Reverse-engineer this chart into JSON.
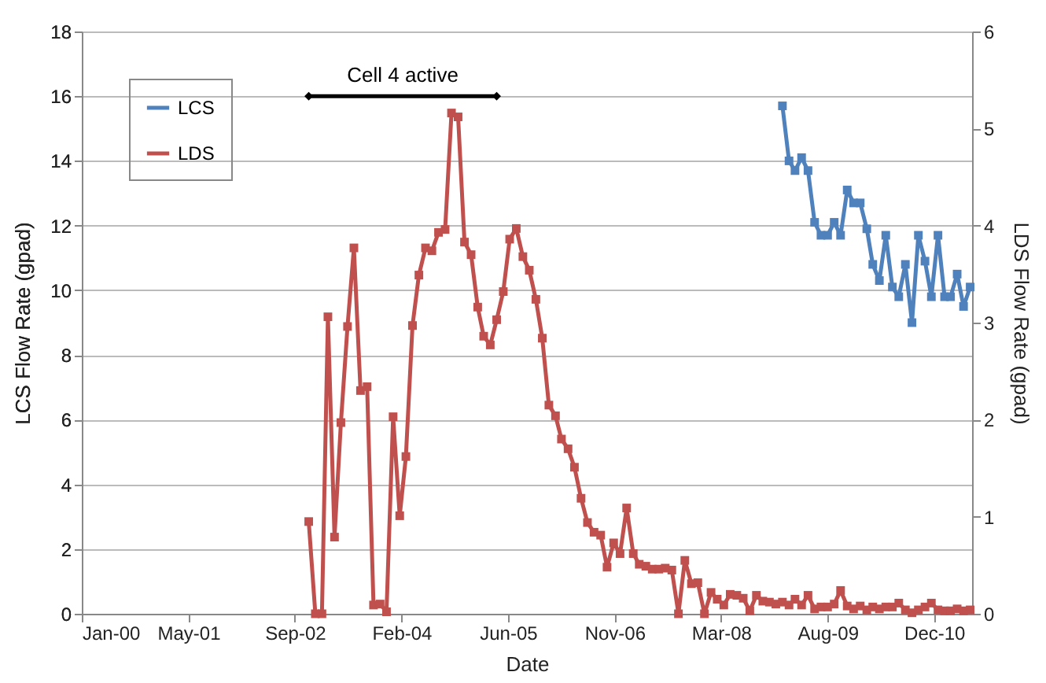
{
  "chart_data": {
    "type": "line",
    "xlabel": "Date",
    "ylabel": "LCS Flow Rate (gpad)",
    "y2label": "LDS Flow Rate (gpad)",
    "xlim": [
      "2000-01-01",
      "2011-06-10"
    ],
    "xticks": [
      {
        "value": "2000-01-01",
        "label": "Jan-00"
      },
      {
        "value": "2001-05-15",
        "label": "May-01"
      },
      {
        "value": "2002-09-27",
        "label": "Sep-02"
      },
      {
        "value": "2004-02-09",
        "label": "Feb-04"
      },
      {
        "value": "2005-06-23",
        "label": "Jun-05"
      },
      {
        "value": "2006-11-05",
        "label": "Nov-06"
      },
      {
        "value": "2008-03-19",
        "label": "Mar-08"
      },
      {
        "value": "2009-08-01",
        "label": "Aug-09"
      },
      {
        "value": "2010-12-14",
        "label": "Dec-10"
      }
    ],
    "ylim": [
      0,
      18
    ],
    "yticks": [
      0,
      2,
      4,
      6,
      8,
      10,
      12,
      14,
      16,
      18
    ],
    "y2lim": [
      0,
      6
    ],
    "y2ticks": [
      0,
      1,
      2,
      3,
      4,
      5,
      6
    ],
    "grid": "y",
    "legend": "top left",
    "marker": "square",
    "line_style": "solid",
    "annotations": [
      {
        "text": "Cell 4 active",
        "x": "2004-02-15",
        "y": 16
      }
    ],
    "series": [
      {
        "color": "#000000",
        "marker": "diamond",
        "x": [
          "2002-12",
          "2005-05"
        ],
        "values": [
          16,
          16
        ]
      },
      {
        "name": "LCS",
        "color": "#4f81bd",
        "x": [
          "2009-01",
          "2009-02",
          "2009-03",
          "2009-04",
          "2009-05",
          "2009-06",
          "2009-07",
          "2009-08",
          "2009-09",
          "2009-10",
          "2009-11",
          "2009-12",
          "2010-01",
          "2010-02",
          "2010-03",
          "2010-04",
          "2010-05",
          "2010-06",
          "2010-07",
          "2010-08",
          "2010-09",
          "2010-10",
          "2010-11",
          "2010-12",
          "2011-01",
          "2011-02",
          "2011-03",
          "2011-04",
          "2011-05",
          "2011-06"
        ],
        "values": [
          15.7,
          14.0,
          13.7,
          14.1,
          13.7,
          12.1,
          11.7,
          11.7,
          12.1,
          11.7,
          13.1,
          12.7,
          12.7,
          11.9,
          10.8,
          10.3,
          11.7,
          10.1,
          9.8,
          10.8,
          9.0,
          11.7,
          10.9,
          9.8,
          11.7,
          9.8,
          9.8,
          10.5,
          9.5,
          10.1
        ]
      },
      {
        "name": "LDS",
        "color": "#c0504d",
        "axis": "y2",
        "x": [
          "2002-12",
          "2003-01",
          "2003-02",
          "2003-03",
          "2003-04",
          "2003-05",
          "2003-06",
          "2003-07",
          "2003-08",
          "2003-09",
          "2003-10",
          "2003-11",
          "2003-12",
          "2004-01",
          "2004-02",
          "2004-03",
          "2004-04",
          "2004-05",
          "2004-06",
          "2004-07",
          "2004-08",
          "2004-09",
          "2004-10",
          "2004-11",
          "2004-12",
          "2005-01",
          "2005-02",
          "2005-03",
          "2005-04",
          "2005-05",
          "2005-06",
          "2005-07",
          "2005-08",
          "2005-09",
          "2005-10",
          "2005-11",
          "2005-12",
          "2006-01",
          "2006-02",
          "2006-03",
          "2006-04",
          "2006-05",
          "2006-06",
          "2006-07",
          "2006-08",
          "2006-09",
          "2006-10",
          "2006-11",
          "2006-12",
          "2007-01",
          "2007-02",
          "2007-03",
          "2007-04",
          "2007-05",
          "2007-06",
          "2007-07",
          "2007-08",
          "2007-09",
          "2007-10",
          "2007-11",
          "2007-12",
          "2008-01",
          "2008-02",
          "2008-03",
          "2008-04",
          "2008-05",
          "2008-06",
          "2008-07",
          "2008-08",
          "2008-09",
          "2008-10",
          "2008-11",
          "2008-12",
          "2009-01",
          "2009-02",
          "2009-03",
          "2009-04",
          "2009-05",
          "2009-06",
          "2009-07",
          "2009-08",
          "2009-09",
          "2009-10",
          "2009-11",
          "2009-12",
          "2010-01",
          "2010-02",
          "2010-03",
          "2010-04",
          "2010-05",
          "2010-06",
          "2010-07",
          "2010-08",
          "2010-09",
          "2010-10",
          "2010-11",
          "2010-12",
          "2011-01",
          "2011-02",
          "2011-03",
          "2011-04",
          "2011-05",
          "2011-06"
        ],
        "values": [
          0.95,
          0,
          0,
          3.06,
          0.79,
          1.97,
          2.96,
          3.77,
          2.3,
          2.34,
          0.09,
          0.1,
          0.02,
          2.03,
          1.01,
          1.62,
          2.97,
          3.49,
          3.77,
          3.74,
          3.93,
          3.96,
          5.16,
          5.12,
          3.83,
          3.7,
          3.16,
          2.86,
          2.77,
          3.03,
          3.32,
          3.86,
          3.97,
          3.68,
          3.54,
          3.24,
          2.84,
          2.15,
          2.04,
          1.8,
          1.7,
          1.51,
          1.19,
          0.94,
          0.84,
          0.81,
          0.48,
          0.73,
          0.62,
          1.09,
          0.62,
          0.51,
          0.49,
          0.46,
          0.46,
          0.47,
          0.45,
          0,
          0.55,
          0.31,
          0.32,
          0,
          0.22,
          0.15,
          0.09,
          0.2,
          0.19,
          0.16,
          0.03,
          0.19,
          0.13,
          0.12,
          0.1,
          0.12,
          0.09,
          0.15,
          0.09,
          0.19,
          0.05,
          0.07,
          0.07,
          0.1,
          0.24,
          0.08,
          0.05,
          0.08,
          0.04,
          0.07,
          0.05,
          0.07,
          0.07,
          0.11,
          0.04,
          0.01,
          0.04,
          0.07,
          0.11,
          0.04,
          0.03,
          0.03,
          0.05,
          0.03,
          0.04
        ]
      }
    ]
  }
}
